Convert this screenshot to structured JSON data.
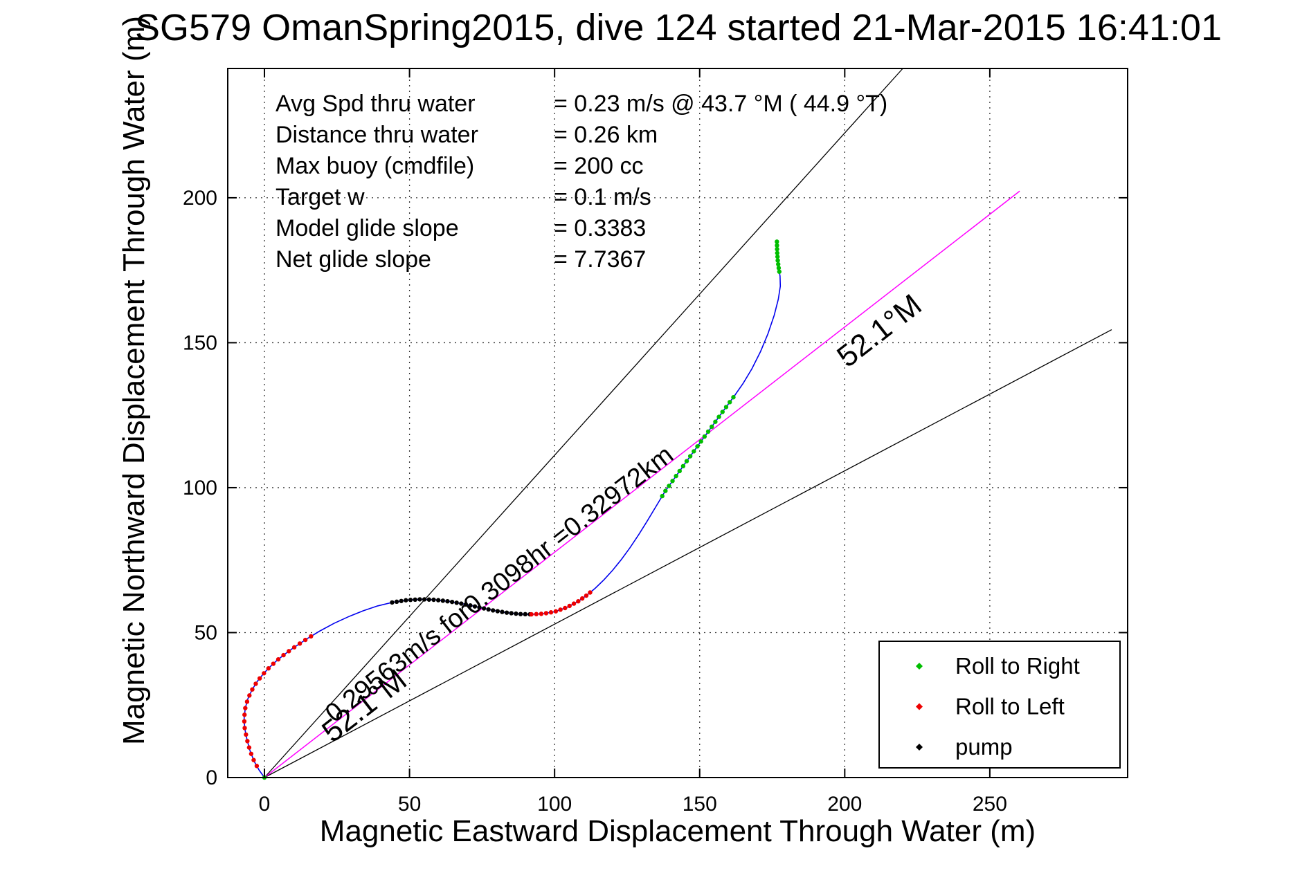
{
  "title": "SG579 OmanSpring2015, dive 124 started 21-Mar-2015 16:41:01",
  "stats": {
    "rows": [
      {
        "label": "Avg Spd thru water",
        "value": "=  0.23 m/s @  43.7 °M ( 44.9 °T)"
      },
      {
        "label": "Distance thru water",
        "value": "=  0.26 km"
      },
      {
        "label": "Max buoy (cmdfile)",
        "value": "= 200 cc"
      },
      {
        "label": "Target w",
        "value": "= 0.1 m/s"
      },
      {
        "label": "Model glide slope",
        "value": "= 0.3383"
      },
      {
        "label": "Net glide slope",
        "value": "= 7.7367"
      }
    ]
  },
  "legend": {
    "items": [
      {
        "label": "Roll to Right",
        "color": "#00BE00"
      },
      {
        "label": "Roll to Left",
        "color": "#EE0000"
      },
      {
        "label": "pump",
        "color": "#000000"
      }
    ]
  },
  "chart_data": {
    "type": "line",
    "title": "SG579 OmanSpring2015, dive 124 started 21-Mar-2015 16:41:01",
    "xlabel": "Magnetic Eastward Displacement Through Water (m)",
    "ylabel": "Magnetic Northward Displacement Through Water (m)",
    "xlim": [
      -12.65,
      297.5
    ],
    "ylim": [
      0,
      244.6
    ],
    "x_ticks": [
      0,
      50,
      100,
      150,
      200,
      250
    ],
    "y_ticks": [
      0,
      50,
      100,
      150,
      200
    ],
    "grid": "dotted",
    "track_color": "#0000EE",
    "track_m": [
      [
        0,
        0
      ],
      [
        -1.8,
        2.5
      ],
      [
        -3.5,
        5.5
      ],
      [
        -4.9,
        9
      ],
      [
        -6,
        13
      ],
      [
        -6.8,
        17
      ],
      [
        -7,
        20.5
      ],
      [
        -6.6,
        24
      ],
      [
        -5.7,
        27.2
      ],
      [
        -4.3,
        30.2
      ],
      [
        -2.6,
        33
      ],
      [
        -0.6,
        35.5
      ],
      [
        1.7,
        38
      ],
      [
        4.2,
        40.3
      ],
      [
        6.8,
        42.4
      ],
      [
        9.5,
        44.4
      ],
      [
        12.3,
        46.3
      ],
      [
        15.2,
        48.2
      ],
      [
        19,
        50.5
      ],
      [
        24,
        53.2
      ],
      [
        29,
        55.5
      ],
      [
        34,
        57.5
      ],
      [
        39,
        59.2
      ],
      [
        44,
        60.4
      ],
      [
        49,
        61.2
      ],
      [
        54,
        61.5
      ],
      [
        59,
        61.3
      ],
      [
        64,
        60.7
      ],
      [
        69,
        59.8
      ],
      [
        74,
        58.7
      ],
      [
        79,
        57.6
      ],
      [
        84,
        56.8
      ],
      [
        88,
        56.4
      ],
      [
        92,
        56.3
      ],
      [
        96,
        56.5
      ],
      [
        100,
        57.2
      ],
      [
        104,
        58.6
      ],
      [
        108,
        60.7
      ],
      [
        111,
        62.8
      ],
      [
        114,
        65.3
      ],
      [
        117,
        68.2
      ],
      [
        120,
        71.5
      ],
      [
        123,
        75.2
      ],
      [
        126,
        79.3
      ],
      [
        129,
        83.8
      ],
      [
        132,
        88.6
      ],
      [
        135,
        93.6
      ],
      [
        138,
        98.6
      ],
      [
        142,
        104.2
      ],
      [
        146,
        109.8
      ],
      [
        150,
        115.3
      ],
      [
        154,
        120.8
      ],
      [
        158,
        126.3
      ],
      [
        162,
        131.7
      ],
      [
        165,
        136
      ],
      [
        168,
        141
      ],
      [
        171,
        147
      ],
      [
        173.5,
        153
      ],
      [
        175.7,
        159.5
      ],
      [
        177.1,
        165
      ],
      [
        177.8,
        169.5
      ],
      [
        177.7,
        173
      ],
      [
        177.2,
        176
      ],
      [
        176.9,
        178.5
      ],
      [
        176.7,
        181.5
      ],
      [
        176.6,
        185.5
      ]
    ],
    "course_line": {
      "label_deg_M": 52.1,
      "from": [
        0,
        0
      ],
      "to": [
        260.3,
        202.3
      ],
      "color": "#FF00FF"
    },
    "fan_lines": [
      {
        "from": [
          0,
          0
        ],
        "to": [
          220,
          244.6
        ]
      },
      {
        "from": [
          0,
          0
        ],
        "to": [
          292,
          154.5
        ]
      }
    ],
    "marker_segments": [
      {
        "name": "start-mark",
        "color": "#00BE00",
        "from": 0,
        "to": 0.01,
        "spacing": 5
      },
      {
        "name": "roll-left-1",
        "color": "#EE0000",
        "from": 1.5,
        "to": 17.3,
        "spacing": 2.3
      },
      {
        "name": "pump",
        "color": "#000000",
        "from": 23,
        "to": 33,
        "spacing": 1.6
      },
      {
        "name": "roll-left-2",
        "color": "#EE0000",
        "from": 33,
        "to": 38.6,
        "spacing": 1.7
      },
      {
        "name": "roll-right-1",
        "color": "#00BE00",
        "from": 46.7,
        "to": 53,
        "spacing": 2.1
      },
      {
        "name": "roll-right-2",
        "color": "#00BE00",
        "from": 61.5,
        "to": 65,
        "spacing": 1.3
      }
    ],
    "annotations": [
      {
        "text": "0.29563m/s for0.3098hr =0.32972km",
        "x": 24,
        "y": 18.65,
        "rot": -37.9,
        "size": 38
      },
      {
        "text": "52.1°M",
        "x": 23.4,
        "y": 11.7,
        "rot": -37.9,
        "size": 44
      },
      {
        "text": "52.1°M",
        "x": 200.9,
        "y": 141.1,
        "rot": -37.9,
        "size": 44
      }
    ]
  }
}
